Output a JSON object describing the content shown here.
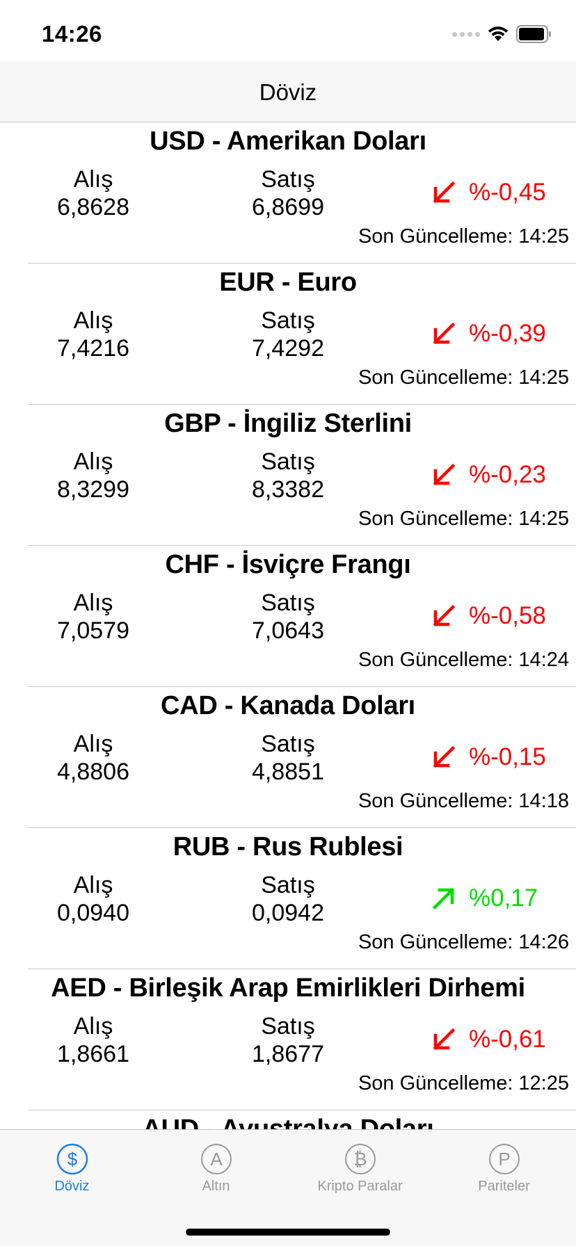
{
  "status_bar": {
    "time": "14:26"
  },
  "nav": {
    "title": "Döviz"
  },
  "labels": {
    "buy": "Alış",
    "sell": "Satış",
    "updated": "Son Güncelleme:"
  },
  "currencies": [
    {
      "title": "USD - Amerikan Doları",
      "buy": "6,8628",
      "sell": "6,8699",
      "change": "%-0,45",
      "direction": "down",
      "updated": "14:25"
    },
    {
      "title": "EUR - Euro",
      "buy": "7,4216",
      "sell": "7,4292",
      "change": "%-0,39",
      "direction": "down",
      "updated": "14:25"
    },
    {
      "title": "GBP - İngiliz Sterlini",
      "buy": "8,3299",
      "sell": "8,3382",
      "change": "%-0,23",
      "direction": "down",
      "updated": "14:25"
    },
    {
      "title": "CHF - İsviçre Frangı",
      "buy": "7,0579",
      "sell": "7,0643",
      "change": "%-0,58",
      "direction": "down",
      "updated": "14:24"
    },
    {
      "title": "CAD - Kanada Doları",
      "buy": "4,8806",
      "sell": "4,8851",
      "change": "%-0,15",
      "direction": "down",
      "updated": "14:18"
    },
    {
      "title": "RUB - Rus Rublesi",
      "buy": "0,0940",
      "sell": "0,0942",
      "change": "%0,17",
      "direction": "up",
      "updated": "14:26"
    },
    {
      "title": "AED - Birleşik Arap Emirlikleri Dirhemi",
      "buy": "1,8661",
      "sell": "1,8677",
      "change": "%-0,61",
      "direction": "down",
      "updated": "12:25"
    },
    {
      "title": "AUD - Avustralya Doları"
    }
  ],
  "tabs": [
    {
      "label": "Döviz",
      "icon": "dollar-circle-icon",
      "active": true
    },
    {
      "label": "Altın",
      "icon": "letter-a-circle-icon",
      "active": false
    },
    {
      "label": "Kripto Paralar",
      "icon": "bitcoin-circle-icon",
      "active": false
    },
    {
      "label": "Pariteler",
      "icon": "letter-p-circle-icon",
      "active": false
    }
  ],
  "colors": {
    "down": "#ff0000",
    "up": "#00e000",
    "tab_active": "#1a7cf5",
    "tab_inactive": "#999999"
  }
}
